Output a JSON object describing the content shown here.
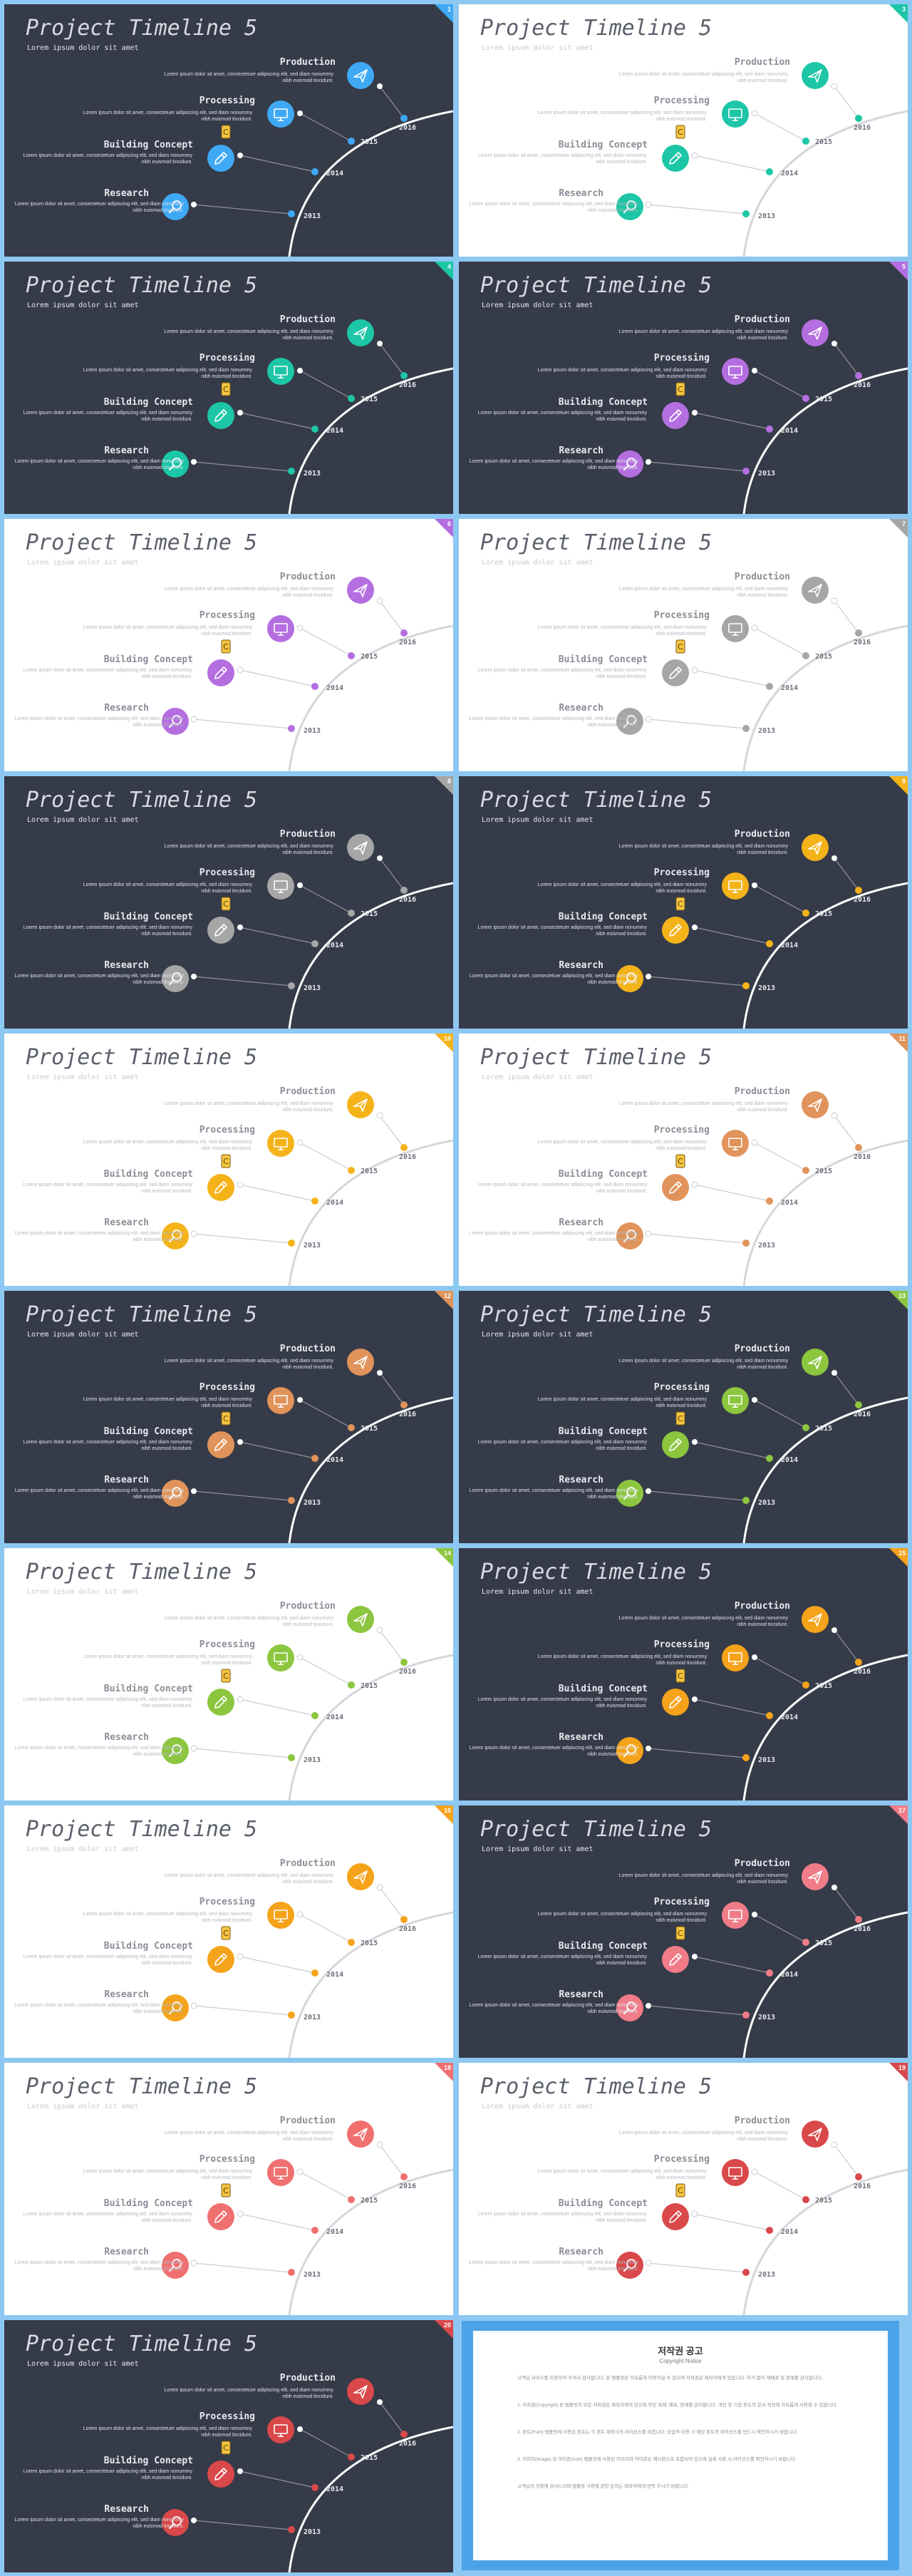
{
  "slide_common": {
    "title": "Project Timeline 5",
    "subtitle": "Lorem ipsum dolor sit amet",
    "steps": [
      {
        "title": "Production",
        "icon": "paper-plane-icon",
        "text": "Lorem ipsum dolor sit amet, consectetuer adipiscing elit, sed diam nonummy nibh euismod tincidunt."
      },
      {
        "title": "Processing",
        "icon": "monitor-icon",
        "text": "Lorem ipsum dolor sit amet, consectetuer adipiscing elit, sed diam nonummy nibh euismod tincidunt."
      },
      {
        "title": "Building Concept",
        "icon": "pencil-icon",
        "text": "Lorem ipsum dolor sit amet, consectetuer adipiscing elit, sed diam nonummy nibh euismod tincidunt."
      },
      {
        "title": "Research",
        "icon": "search-icon",
        "text": "Lorem ipsum dolor sit amet, consectetuer adipiscing elit, sed diam nonummy nibh euismod tincidunt."
      }
    ],
    "years": [
      "2016",
      "2015",
      "2014",
      "2013"
    ]
  },
  "slides": [
    {
      "number": "1",
      "theme": "dark",
      "accent": "#3fa9f5"
    },
    {
      "number": "3",
      "theme": "light",
      "accent": "#1cc6a6"
    },
    {
      "number": "4",
      "theme": "dark",
      "accent": "#1cc6a6"
    },
    {
      "number": "5",
      "theme": "dark",
      "accent": "#b46ee0"
    },
    {
      "number": "6",
      "theme": "light",
      "accent": "#b46ee0"
    },
    {
      "number": "7",
      "theme": "light",
      "accent": "#a6a6a6"
    },
    {
      "number": "8",
      "theme": "dark",
      "accent": "#a6a6a6"
    },
    {
      "number": "9",
      "theme": "dark",
      "accent": "#f5b31a"
    },
    {
      "number": "10",
      "theme": "light",
      "accent": "#f5b31a"
    },
    {
      "number": "11",
      "theme": "light",
      "accent": "#e0935a"
    },
    {
      "number": "12",
      "theme": "dark",
      "accent": "#e0935a"
    },
    {
      "number": "13",
      "theme": "dark",
      "accent": "#8cc63f"
    },
    {
      "number": "14",
      "theme": "light",
      "accent": "#8cc63f"
    },
    {
      "number": "15",
      "theme": "dark",
      "accent": "#f5a31a"
    },
    {
      "number": "16",
      "theme": "light",
      "accent": "#f5a31a"
    },
    {
      "number": "17",
      "theme": "dark",
      "accent": "#f07c88"
    },
    {
      "number": "18",
      "theme": "light",
      "accent": "#f07070"
    },
    {
      "number": "19",
      "theme": "light",
      "accent": "#d9484a"
    },
    {
      "number": "20",
      "theme": "dark",
      "accent": "#d9484a"
    }
  ],
  "copyright_notice": {
    "title": "저작권 공고",
    "subtitle": "Copyright Notice",
    "paragraphs": [
      "고객님 서비스를 이용하여 주셔서 감사합니다. 본 템플릿은 자유롭게 이용하실 수 있으며 저작권은 제작자에게 있습니다. 허가 없이 재배포 및 판매를 금지합니다.",
      "1. 저작권(Copyright) 본 템플릿의 모든 저작권은 제작자에게 있으며 무단 복제, 배포, 판매를 금지합니다. 개인 및 기업 용도의 문서 작성에 자유롭게 사용할 수 있습니다.",
      "2. 폰트(Font) 템플릿에 사용된 폰트는 각 폰트 제작사의 라이선스를 따릅니다. 상업적 이용 시 해당 폰트의 라이선스를 반드시 확인하시기 바랍니다.",
      "3. 이미지(Image) 및 아이콘(Icon) 템플릿에 사용된 이미지와 아이콘은 예시용으로 포함되어 있으며 실제 사용 시 라이선스를 확인하시기 바랍니다.",
      "고객님의 이용에 감사드리며 템플릿 사용에 관한 문의는 제작자에게 연락 주시기 바랍니다."
    ]
  }
}
